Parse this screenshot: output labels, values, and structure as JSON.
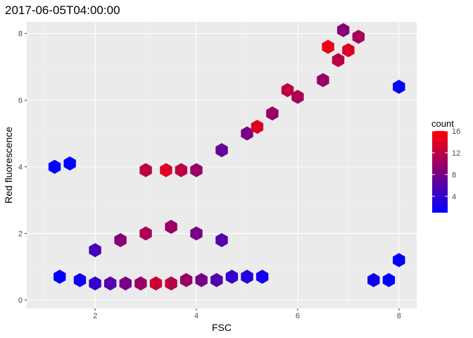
{
  "chart_data": {
    "type": "hexbin",
    "title": "2017-06-05T04:00:00",
    "xlabel": "FSC",
    "ylabel": "Red fluorescence",
    "xlim": [
      0.65,
      8.35
    ],
    "ylim": [
      -0.25,
      8.35
    ],
    "x_ticks": [
      2,
      4,
      6,
      8
    ],
    "y_ticks": [
      0,
      2,
      4,
      6,
      8
    ],
    "grid": true,
    "legend": {
      "title": "count",
      "position": "right",
      "ticks": [
        4,
        8,
        12,
        16
      ],
      "range": [
        1,
        16
      ],
      "low_color": "#0000ff",
      "high_color": "#ff0000"
    },
    "bins": [
      {
        "cx": 1.2,
        "cy": 4.0,
        "count": 1
      },
      {
        "cx": 1.5,
        "cy": 4.1,
        "count": 1
      },
      {
        "cx": 1.3,
        "cy": 0.7,
        "count": 1
      },
      {
        "cx": 1.7,
        "cy": 0.6,
        "count": 2
      },
      {
        "cx": 2.0,
        "cy": 0.5,
        "count": 4
      },
      {
        "cx": 2.3,
        "cy": 0.5,
        "count": 6
      },
      {
        "cx": 2.6,
        "cy": 0.5,
        "count": 8
      },
      {
        "cx": 2.9,
        "cy": 0.5,
        "count": 10
      },
      {
        "cx": 3.2,
        "cy": 0.5,
        "count": 13
      },
      {
        "cx": 3.5,
        "cy": 0.5,
        "count": 12
      },
      {
        "cx": 3.8,
        "cy": 0.6,
        "count": 10
      },
      {
        "cx": 4.1,
        "cy": 0.6,
        "count": 8
      },
      {
        "cx": 4.4,
        "cy": 0.6,
        "count": 6
      },
      {
        "cx": 4.7,
        "cy": 0.7,
        "count": 4
      },
      {
        "cx": 5.0,
        "cy": 0.7,
        "count": 3
      },
      {
        "cx": 5.3,
        "cy": 0.7,
        "count": 2
      },
      {
        "cx": 2.0,
        "cy": 1.5,
        "count": 5
      },
      {
        "cx": 2.5,
        "cy": 1.8,
        "count": 9
      },
      {
        "cx": 3.0,
        "cy": 2.0,
        "count": 11
      },
      {
        "cx": 3.5,
        "cy": 2.2,
        "count": 10
      },
      {
        "cx": 4.0,
        "cy": 2.0,
        "count": 8
      },
      {
        "cx": 4.5,
        "cy": 1.8,
        "count": 6
      },
      {
        "cx": 3.0,
        "cy": 3.9,
        "count": 12
      },
      {
        "cx": 3.4,
        "cy": 3.9,
        "count": 14
      },
      {
        "cx": 3.7,
        "cy": 3.9,
        "count": 12
      },
      {
        "cx": 4.0,
        "cy": 3.9,
        "count": 10
      },
      {
        "cx": 4.5,
        "cy": 4.5,
        "count": 7
      },
      {
        "cx": 5.0,
        "cy": 5.0,
        "count": 8
      },
      {
        "cx": 5.5,
        "cy": 5.6,
        "count": 10
      },
      {
        "cx": 6.0,
        "cy": 6.1,
        "count": 11
      },
      {
        "cx": 6.5,
        "cy": 6.6,
        "count": 10
      },
      {
        "cx": 6.8,
        "cy": 7.2,
        "count": 12
      },
      {
        "cx": 7.0,
        "cy": 7.5,
        "count": 14
      },
      {
        "cx": 6.6,
        "cy": 7.6,
        "count": 15
      },
      {
        "cx": 7.2,
        "cy": 7.9,
        "count": 11
      },
      {
        "cx": 6.9,
        "cy": 8.1,
        "count": 9
      },
      {
        "cx": 5.2,
        "cy": 5.2,
        "count": 14
      },
      {
        "cx": 5.8,
        "cy": 6.3,
        "count": 12
      },
      {
        "cx": 7.5,
        "cy": 0.6,
        "count": 2
      },
      {
        "cx": 7.8,
        "cy": 0.6,
        "count": 1
      },
      {
        "cx": 8.0,
        "cy": 6.4,
        "count": 1
      },
      {
        "cx": 8.0,
        "cy": 1.2,
        "count": 1
      }
    ]
  }
}
